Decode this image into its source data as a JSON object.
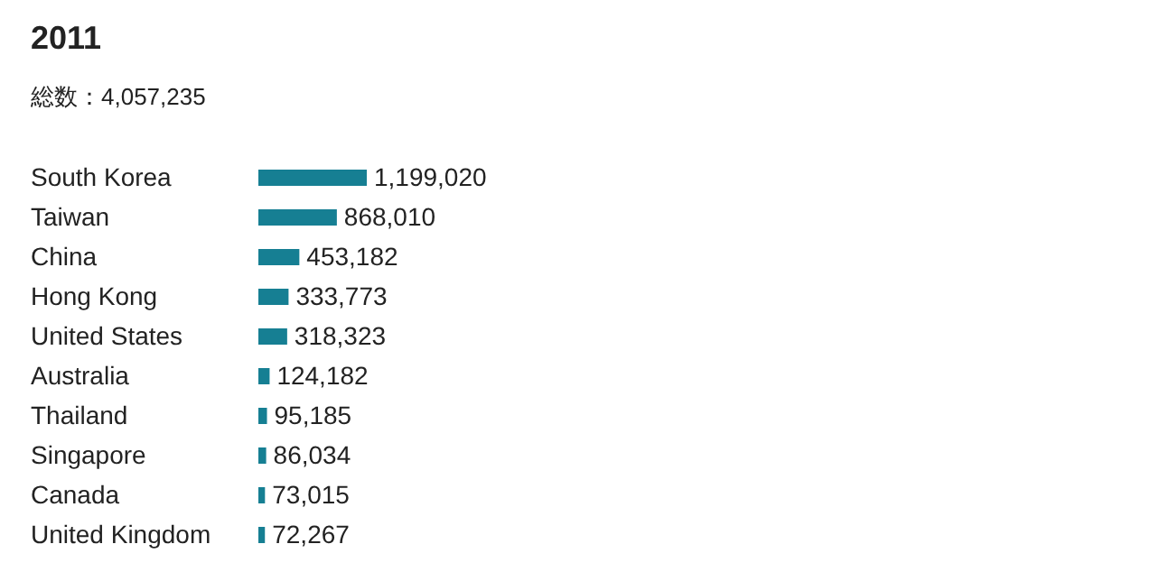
{
  "chart_data": {
    "type": "bar",
    "orientation": "horizontal",
    "title": "2011",
    "subtitle": "総数：4,057,235",
    "categories": [
      "South Korea",
      "Taiwan",
      "China",
      "Hong Kong",
      "United States",
      "Australia",
      "Thailand",
      "Singapore",
      "Canada",
      "United Kingdom"
    ],
    "values": [
      1199020,
      868010,
      453182,
      333773,
      318323,
      124182,
      95185,
      86034,
      73015,
      72267
    ],
    "value_labels": [
      "1,199,020",
      "868,010",
      "453,182",
      "333,773",
      "318,323",
      "124,182",
      "95,185",
      "86,034",
      "73,015",
      "72,267"
    ],
    "color": "#167f93"
  }
}
